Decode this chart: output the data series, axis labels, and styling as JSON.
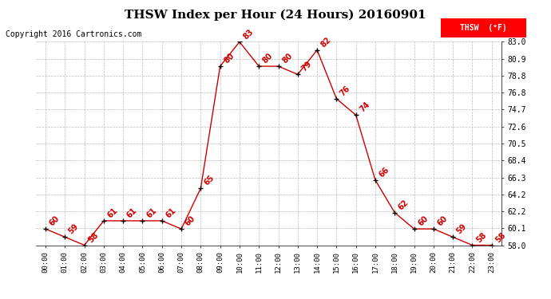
{
  "title": "THSW Index per Hour (24 Hours) 20160901",
  "copyright": "Copyright 2016 Cartronics.com",
  "legend_label": "THSW  (°F)",
  "hours": [
    0,
    1,
    2,
    3,
    4,
    5,
    6,
    7,
    8,
    9,
    10,
    11,
    12,
    13,
    14,
    15,
    16,
    17,
    18,
    19,
    20,
    21,
    22,
    23
  ],
  "values": [
    60,
    59,
    58,
    61,
    61,
    61,
    61,
    60,
    65,
    80,
    83,
    80,
    80,
    79,
    82,
    76,
    74,
    66,
    62,
    60,
    60,
    59,
    58,
    58
  ],
  "ylim_min": 58.0,
  "ylim_max": 83.0,
  "yticks": [
    58.0,
    60.1,
    62.2,
    64.2,
    66.3,
    68.4,
    70.5,
    72.6,
    74.7,
    76.8,
    78.8,
    80.9,
    83.0
  ],
  "line_color": "#cc0000",
  "marker_color": "black",
  "background_color": "white",
  "grid_color": "#bbbbbb",
  "title_fontsize": 11,
  "copyright_fontsize": 7,
  "label_fontsize": 7,
  "tick_fontsize": 6.5,
  "ytick_fontsize": 7
}
